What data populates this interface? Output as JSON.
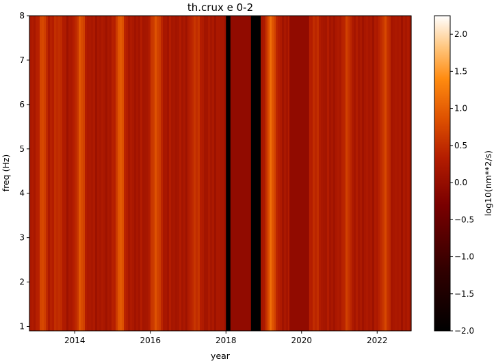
{
  "chart_data": {
    "type": "heatmap",
    "title": "th.crux e 0-2",
    "xlabel": "year",
    "ylabel": "freq (Hz)",
    "xlim": [
      2012.8,
      2022.9
    ],
    "ylim": [
      0.9,
      8.0
    ],
    "x_ticks": [
      2014,
      2016,
      2018,
      2020,
      2022
    ],
    "x_tick_labels": [
      "2014",
      "2016",
      "2018",
      "2020",
      "2022"
    ],
    "y_ticks": [
      1,
      2,
      3,
      4,
      5,
      6,
      7,
      8
    ],
    "y_tick_labels": [
      "1",
      "2",
      "3",
      "4",
      "5",
      "6",
      "7",
      "8"
    ],
    "colorbar": {
      "label": "log10(nm**2/s)",
      "min": -2.0,
      "max": 2.25,
      "ticks": [
        -2.0,
        -1.5,
        -1.0,
        -0.5,
        0.0,
        0.5,
        1.0,
        1.5,
        2.0
      ],
      "tick_labels": [
        "−2.0",
        "−1.5",
        "−1.0",
        "−0.5",
        "0.0",
        "0.5",
        "1.0",
        "1.5",
        "2.0"
      ],
      "colormap": "gist_heat"
    },
    "grid": false,
    "background_level": 0.2,
    "seasonal_peaks": [
      {
        "year": 2013.15,
        "level": 0.75
      },
      {
        "year": 2013.55,
        "level": 0.55
      },
      {
        "year": 2014.15,
        "level": 0.85
      },
      {
        "year": 2015.2,
        "level": 0.95
      },
      {
        "year": 2016.15,
        "level": 0.85
      },
      {
        "year": 2017.2,
        "level": 0.6
      },
      {
        "year": 2019.2,
        "level": 1.05
      },
      {
        "year": 2020.35,
        "level": 0.5
      },
      {
        "year": 2021.2,
        "level": 0.6
      },
      {
        "year": 2022.2,
        "level": 0.7
      }
    ],
    "gaps": [
      {
        "start": 2018.0,
        "end": 2018.12,
        "level": -2.0
      },
      {
        "start": 2018.12,
        "end": 2018.66,
        "level": -0.05
      },
      {
        "start": 2018.66,
        "end": 2018.92,
        "level": -2.0
      },
      {
        "start": 2019.68,
        "end": 2020.2,
        "level": -0.05
      }
    ]
  }
}
